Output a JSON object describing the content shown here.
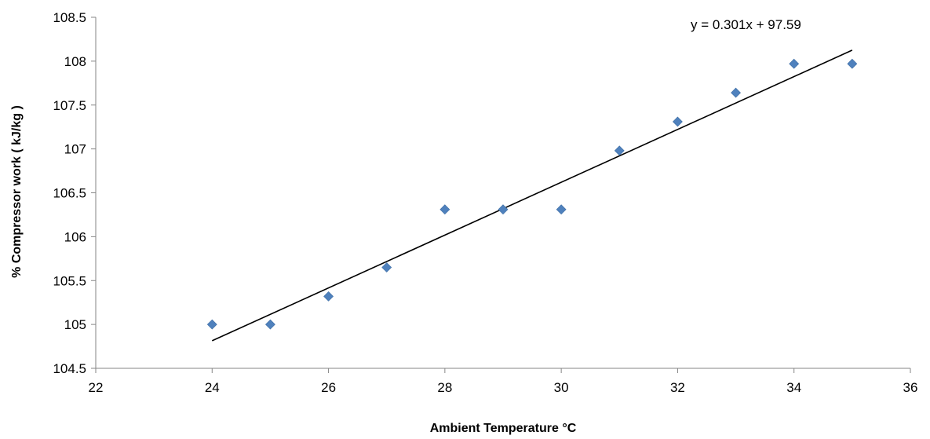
{
  "chart_data": {
    "type": "scatter",
    "title": "",
    "xlabel": "Ambient Temperature  °C",
    "ylabel": "% Compressor work ( kJ/kg )",
    "xlim": [
      22,
      36
    ],
    "ylim": [
      104.5,
      108.5
    ],
    "xticks": [
      22,
      24,
      26,
      28,
      30,
      32,
      34,
      36
    ],
    "yticks": [
      104.5,
      105,
      105.5,
      106,
      106.5,
      107,
      107.5,
      108,
      108.5
    ],
    "xtick_labels": [
      "22",
      "24",
      "26",
      "28",
      "30",
      "32",
      "34",
      "36"
    ],
    "ytick_labels": [
      "104.5",
      "105",
      "105.5",
      "106",
      "106.5",
      "107",
      "107.5",
      "108",
      "108.5"
    ],
    "grid": false,
    "marker": "diamond",
    "marker_color": "#4F81BD",
    "trendline_color": "#000000",
    "series": [
      {
        "x": [
          24,
          25,
          26,
          27,
          28,
          29,
          30,
          31,
          32,
          33,
          34,
          35
        ],
        "y": [
          105.0,
          105.0,
          105.32,
          105.65,
          106.31,
          106.31,
          106.31,
          106.98,
          107.31,
          107.64,
          107.97,
          107.97
        ]
      }
    ],
    "trendline": {
      "slope": 0.301,
      "intercept": 97.59,
      "x_range": [
        24,
        35
      ],
      "equation": "y = 0.301x + 97.59"
    }
  }
}
